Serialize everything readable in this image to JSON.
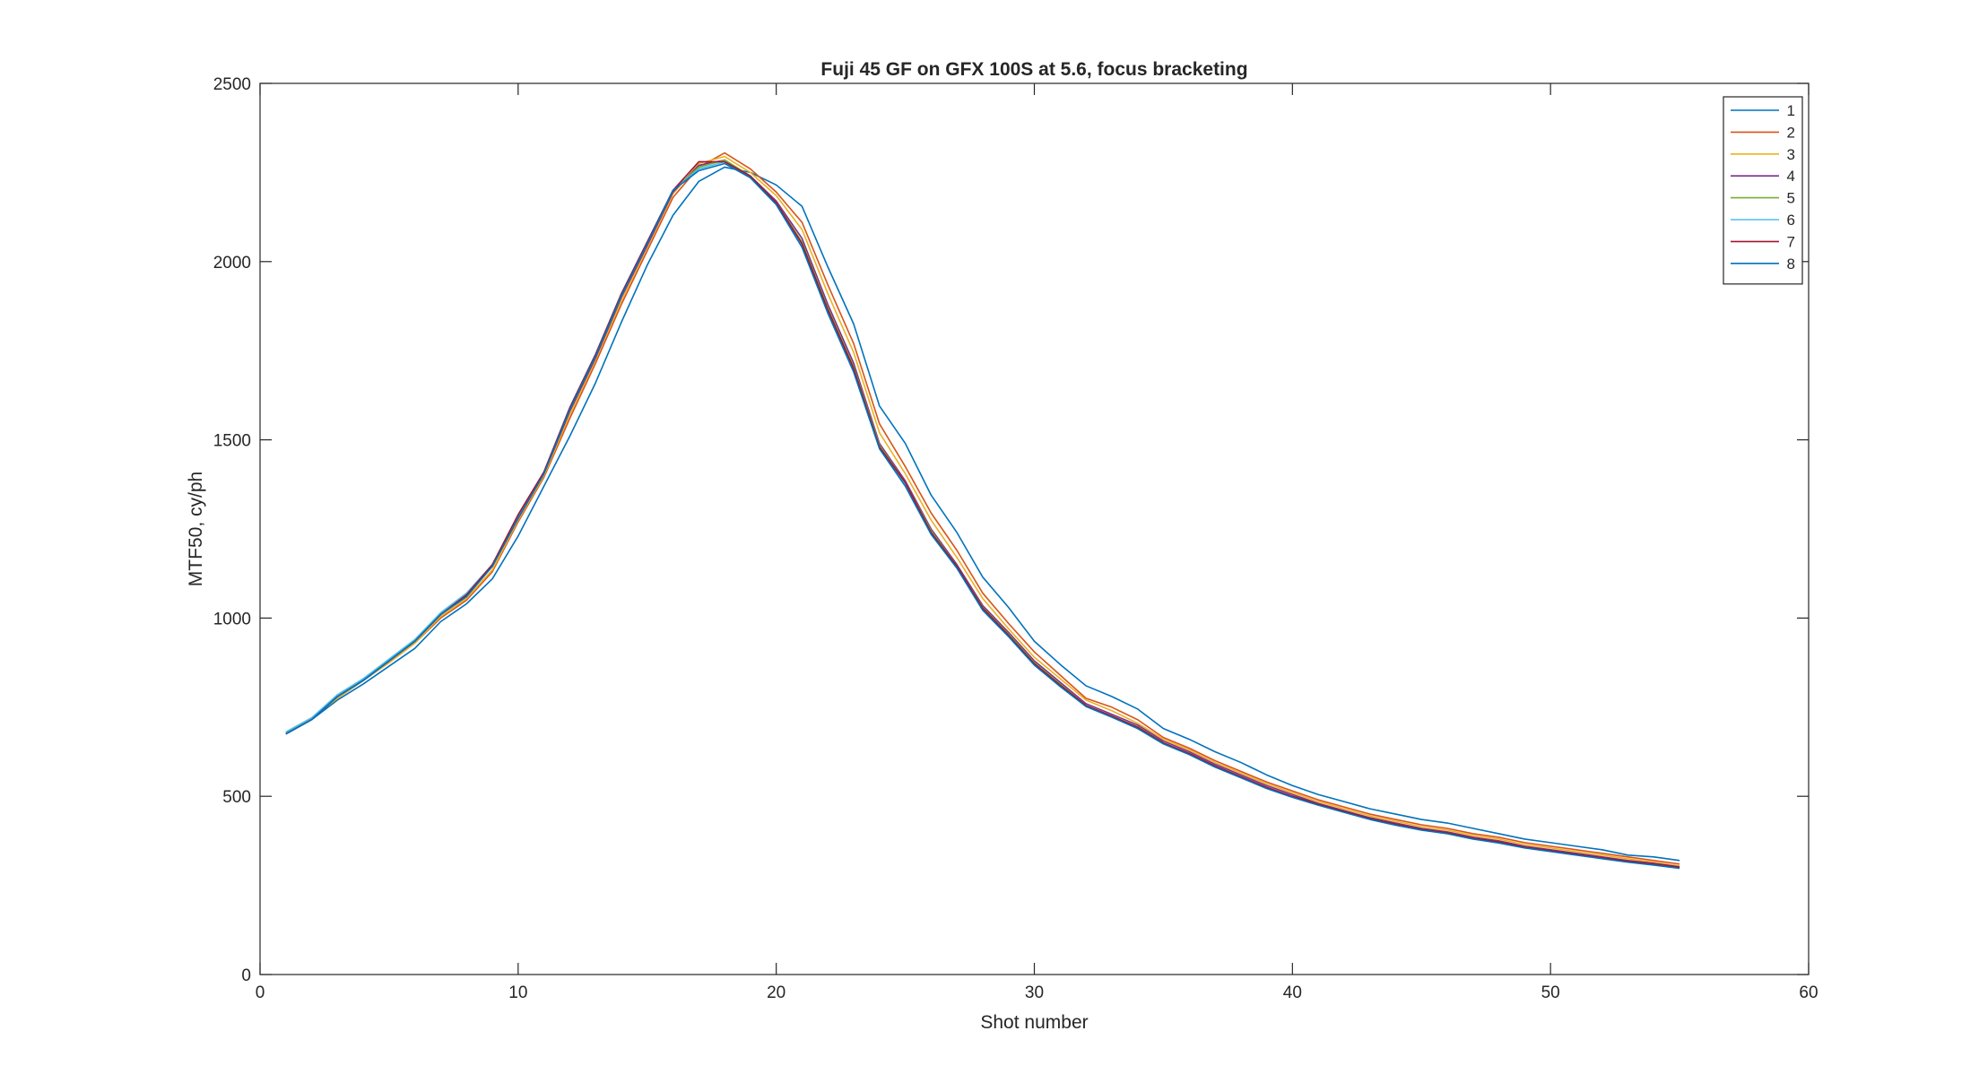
{
  "chart_data": {
    "type": "line",
    "title": "Fuji 45 GF on GFX 100S at 5.6, focus bracketing",
    "xlabel": "Shot number",
    "ylabel": "MTF50, cy/ph",
    "xlim": [
      0,
      60
    ],
    "ylim": [
      0,
      2500
    ],
    "xticks": [
      0,
      10,
      20,
      30,
      40,
      50,
      60
    ],
    "yticks": [
      0,
      500,
      1000,
      1500,
      2000,
      2500
    ],
    "grid": false,
    "legend_position": "top-right",
    "x": [
      1,
      2,
      3,
      4,
      5,
      6,
      7,
      8,
      9,
      10,
      11,
      12,
      13,
      14,
      15,
      16,
      17,
      18,
      19,
      20,
      21,
      22,
      23,
      24,
      25,
      26,
      27,
      28,
      29,
      30,
      31,
      32,
      33,
      34,
      35,
      36,
      37,
      38,
      39,
      40,
      41,
      42,
      43,
      44,
      45,
      46,
      47,
      48,
      49,
      50,
      51,
      52,
      53,
      54,
      55
    ],
    "series": [
      {
        "name": "1",
        "color": "#0072BD",
        "values": [
          675,
          715,
          770,
          815,
          865,
          915,
          990,
          1040,
          1110,
          1230,
          1370,
          1510,
          1660,
          1830,
          1990,
          2130,
          2225,
          2265,
          2250,
          2215,
          2155,
          1985,
          1825,
          1595,
          1490,
          1345,
          1240,
          1115,
          1030,
          935,
          870,
          810,
          780,
          745,
          690,
          660,
          625,
          595,
          560,
          530,
          505,
          485,
          465,
          450,
          435,
          425,
          410,
          395,
          380,
          370,
          360,
          350,
          335,
          330,
          320
        ]
      },
      {
        "name": "2",
        "color": "#D95319",
        "values": [
          680,
          720,
          775,
          825,
          875,
          930,
          1000,
          1050,
          1130,
          1270,
          1395,
          1560,
          1715,
          1880,
          2030,
          2180,
          2265,
          2305,
          2260,
          2195,
          2110,
          1935,
          1770,
          1545,
          1425,
          1295,
          1190,
          1070,
          985,
          905,
          840,
          775,
          750,
          715,
          665,
          635,
          600,
          570,
          540,
          515,
          490,
          470,
          450,
          435,
          420,
          410,
          395,
          385,
          370,
          360,
          350,
          340,
          330,
          320,
          310
        ]
      },
      {
        "name": "3",
        "color": "#EDB120",
        "values": [
          680,
          720,
          775,
          825,
          875,
          930,
          1005,
          1055,
          1135,
          1275,
          1400,
          1570,
          1725,
          1890,
          2040,
          2190,
          2275,
          2295,
          2250,
          2185,
          2090,
          1910,
          1745,
          1520,
          1405,
          1275,
          1170,
          1055,
          970,
          890,
          830,
          770,
          740,
          705,
          660,
          630,
          595,
          565,
          535,
          510,
          485,
          465,
          445,
          430,
          415,
          405,
          390,
          380,
          365,
          355,
          345,
          335,
          325,
          315,
          305
        ]
      },
      {
        "name": "4",
        "color": "#7E2F8E",
        "values": [
          675,
          715,
          780,
          825,
          880,
          935,
          1010,
          1065,
          1145,
          1280,
          1405,
          1580,
          1730,
          1900,
          2045,
          2195,
          2270,
          2285,
          2240,
          2170,
          2065,
          1880,
          1715,
          1490,
          1385,
          1250,
          1150,
          1035,
          960,
          880,
          820,
          760,
          730,
          700,
          655,
          625,
          590,
          560,
          530,
          505,
          480,
          460,
          440,
          425,
          410,
          400,
          385,
          375,
          360,
          350,
          340,
          330,
          320,
          312,
          302
        ]
      },
      {
        "name": "5",
        "color": "#77AC30",
        "values": [
          675,
          715,
          780,
          825,
          880,
          935,
          1010,
          1065,
          1145,
          1285,
          1410,
          1585,
          1735,
          1905,
          2050,
          2200,
          2265,
          2285,
          2240,
          2165,
          2055,
          1870,
          1705,
          1485,
          1380,
          1245,
          1145,
          1030,
          955,
          875,
          815,
          755,
          725,
          695,
          650,
          620,
          585,
          555,
          525,
          500,
          478,
          458,
          438,
          422,
          408,
          398,
          383,
          372,
          358,
          348,
          338,
          328,
          318,
          310,
          300
        ]
      },
      {
        "name": "6",
        "color": "#4DBEEE",
        "values": [
          680,
          720,
          785,
          830,
          885,
          940,
          1015,
          1070,
          1150,
          1285,
          1410,
          1590,
          1740,
          1910,
          2055,
          2200,
          2260,
          2280,
          2235,
          2160,
          2045,
          1860,
          1695,
          1480,
          1375,
          1240,
          1140,
          1025,
          950,
          870,
          810,
          752,
          722,
          692,
          648,
          618,
          583,
          553,
          523,
          498,
          476,
          456,
          436,
          420,
          406,
          396,
          381,
          370,
          356,
          346,
          336,
          326,
          316,
          308,
          299
        ]
      },
      {
        "name": "7",
        "color": "#A2142F",
        "values": [
          675,
          715,
          780,
          825,
          880,
          935,
          1010,
          1065,
          1150,
          1290,
          1410,
          1590,
          1740,
          1910,
          2055,
          2200,
          2280,
          2280,
          2240,
          2165,
          2050,
          1865,
          1700,
          1480,
          1380,
          1240,
          1145,
          1028,
          952,
          872,
          812,
          755,
          725,
          694,
          650,
          620,
          585,
          555,
          525,
          500,
          478,
          458,
          438,
          422,
          408,
          398,
          383,
          372,
          358,
          348,
          338,
          328,
          318,
          310,
          301
        ]
      },
      {
        "name": "8",
        "color": "#0072BD",
        "values": [
          675,
          715,
          780,
          825,
          880,
          935,
          1010,
          1060,
          1145,
          1280,
          1405,
          1585,
          1735,
          1905,
          2050,
          2200,
          2255,
          2275,
          2235,
          2160,
          2040,
          1855,
          1690,
          1475,
          1370,
          1235,
          1140,
          1022,
          948,
          868,
          808,
          752,
          722,
          690,
          647,
          617,
          582,
          552,
          522,
          497,
          475,
          455,
          435,
          419,
          405,
          395,
          380,
          369,
          355,
          345,
          335,
          325,
          315,
          307,
          298
        ]
      }
    ]
  }
}
